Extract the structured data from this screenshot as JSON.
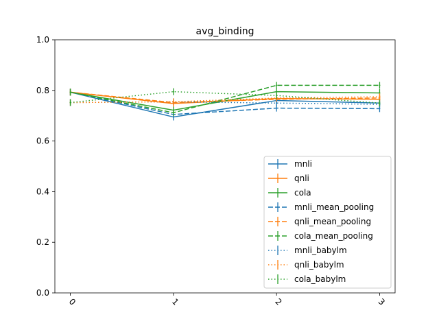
{
  "chart_data": {
    "type": "line",
    "title": "avg_binding",
    "xlabel": "",
    "ylabel": "",
    "x": [
      0,
      1,
      2,
      3
    ],
    "x_tick_labels": [
      "0",
      "1",
      "2",
      "3"
    ],
    "y_tick_labels": [
      "0.0",
      "0.2",
      "0.4",
      "0.6",
      "0.8",
      "1.0"
    ],
    "ylim": [
      0,
      1
    ],
    "xlim": [
      -0.15,
      3.15
    ],
    "x_tick_rotation_deg": -45,
    "grid": false,
    "legend_position": "lower-right",
    "series": [
      {
        "name": "mnli",
        "color": "#1f77b4",
        "linestyle": "solid",
        "values": [
          0.793,
          0.695,
          0.76,
          0.75
        ],
        "errors": [
          0.0,
          0.012,
          0.012,
          0.012
        ]
      },
      {
        "name": "qnli",
        "color": "#ff7f0e",
        "linestyle": "solid",
        "values": [
          0.793,
          0.748,
          0.768,
          0.765
        ],
        "errors": [
          0.0,
          0.01,
          0.01,
          0.01
        ]
      },
      {
        "name": "cola",
        "color": "#2ca02c",
        "linestyle": "solid",
        "values": [
          0.793,
          0.722,
          0.795,
          0.79
        ],
        "errors": [
          0.0,
          0.012,
          0.012,
          0.015
        ]
      },
      {
        "name": "mnli_mean_pooling",
        "color": "#1f77b4",
        "linestyle": "dashed",
        "values": [
          0.793,
          0.705,
          0.73,
          0.728
        ],
        "errors": [
          0.0,
          0.01,
          0.012,
          0.012
        ]
      },
      {
        "name": "qnli_mean_pooling",
        "color": "#ff7f0e",
        "linestyle": "dashed",
        "values": [
          0.793,
          0.752,
          0.765,
          0.77
        ],
        "errors": [
          0.0,
          0.008,
          0.008,
          0.008
        ]
      },
      {
        "name": "cola_mean_pooling",
        "color": "#2ca02c",
        "linestyle": "dashed",
        "values": [
          0.793,
          0.712,
          0.82,
          0.82
        ],
        "errors": [
          0.0,
          0.006,
          0.006,
          0.006
        ]
      },
      {
        "name": "mnli_babylm",
        "color": "#1f77b4",
        "linestyle": "dotted",
        "values": [
          0.752,
          0.755,
          0.75,
          0.745
        ],
        "errors": [
          0.0,
          0.006,
          0.006,
          0.006
        ]
      },
      {
        "name": "qnli_babylm",
        "color": "#ff7f0e",
        "linestyle": "dotted",
        "values": [
          0.752,
          0.755,
          0.77,
          0.775
        ],
        "errors": [
          0.0,
          0.006,
          0.006,
          0.006
        ]
      },
      {
        "name": "cola_babylm",
        "color": "#2ca02c",
        "linestyle": "dotted",
        "values": [
          0.752,
          0.795,
          0.78,
          0.75
        ],
        "errors": [
          0.0,
          0.006,
          0.006,
          0.006
        ]
      }
    ]
  }
}
